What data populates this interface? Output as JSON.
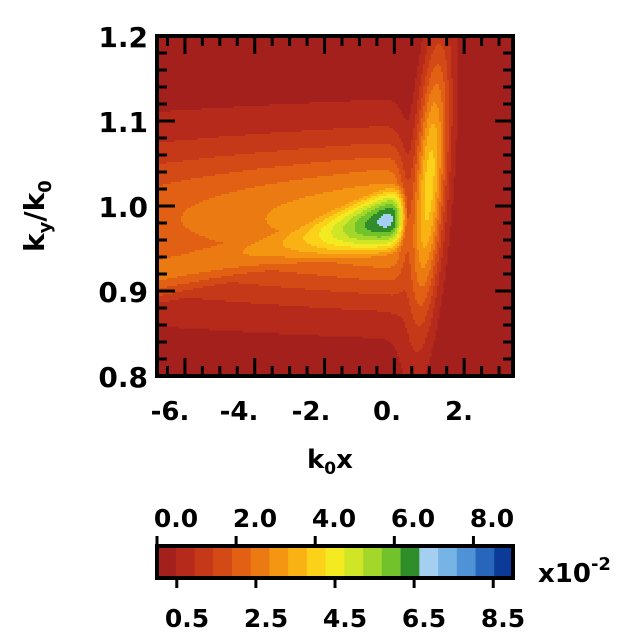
{
  "chart_data": {
    "type": "heatmap",
    "title": "",
    "xlabel_main": "k",
    "xlabel_sub": "0",
    "xlabel_tail": "x",
    "ylabel_main": "k",
    "ylabel_sub1": "y",
    "ylabel_mid": "/k",
    "ylabel_sub2": "0",
    "xlim": [
      -6.8,
      3.4
    ],
    "ylim": [
      0.8,
      1.2
    ],
    "x_ticks": [
      {
        "value": -6,
        "label": "-6."
      },
      {
        "value": -4,
        "label": "-4."
      },
      {
        "value": -2,
        "label": "-2."
      },
      {
        "value": 0,
        "label": "0."
      },
      {
        "value": 2,
        "label": "2."
      }
    ],
    "y_ticks": [
      {
        "value": 1.2,
        "label": "1.2"
      },
      {
        "value": 1.1,
        "label": "1.1"
      },
      {
        "value": 1.0,
        "label": "1.0"
      },
      {
        "value": 0.9,
        "label": "0.9"
      },
      {
        "value": 0.8,
        "label": "0.8"
      }
    ],
    "colorbar": {
      "range": [
        0.0,
        0.09
      ],
      "multiplier_label": "x10",
      "multiplier_exponent": "-2",
      "top_ticks": [
        {
          "value": 0.0,
          "label": "0.0"
        },
        {
          "value": 2.0,
          "label": "2.0"
        },
        {
          "value": 4.0,
          "label": "4.0"
        },
        {
          "value": 6.0,
          "label": "6.0"
        },
        {
          "value": 8.0,
          "label": "8.0"
        }
      ],
      "bottom_ticks": [
        {
          "value": 0.5,
          "label": "0.5"
        },
        {
          "value": 2.5,
          "label": "2.5"
        },
        {
          "value": 4.5,
          "label": "4.5"
        },
        {
          "value": 6.5,
          "label": "6.5"
        },
        {
          "value": 8.5,
          "label": "8.5"
        }
      ],
      "levels": 18,
      "colors": [
        "#a3201c",
        "#b52a1a",
        "#c53818",
        "#d44a16",
        "#e26014",
        "#ec7a12",
        "#f49612",
        "#f9b214",
        "#fbd11a",
        "#f3ea22",
        "#cfe526",
        "#a3d82a",
        "#72c22c",
        "#2f8d2a",
        "#a4cff0",
        "#76b4e6",
        "#4f93d6",
        "#2866bb",
        "#0c3a99"
      ]
    }
  }
}
